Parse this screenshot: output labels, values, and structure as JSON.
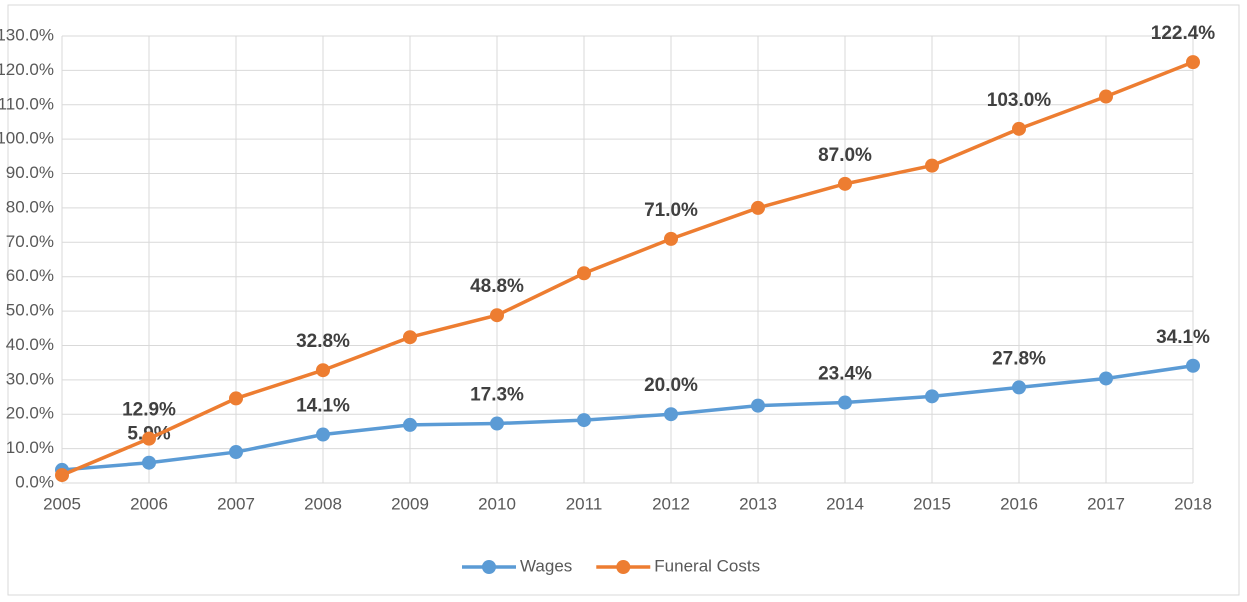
{
  "chart_data": {
    "type": "line",
    "categories": [
      "2005",
      "2006",
      "2007",
      "2008",
      "2009",
      "2010",
      "2011",
      "2012",
      "2013",
      "2014",
      "2015",
      "2016",
      "2017",
      "2018"
    ],
    "series": [
      {
        "name": "Wages",
        "color": "#5b9bd5",
        "values": [
          3.8,
          5.9,
          9.0,
          14.1,
          16.9,
          17.3,
          18.3,
          20.0,
          22.5,
          23.4,
          25.2,
          27.8,
          30.4,
          34.1
        ],
        "value_labels": [
          null,
          "5.9%",
          null,
          "14.1%",
          null,
          "17.3%",
          null,
          "20.0%",
          null,
          "23.4%",
          null,
          "27.8%",
          null,
          "34.1%"
        ]
      },
      {
        "name": "Funeral Costs",
        "color": "#ed7d31",
        "values": [
          2.3,
          12.9,
          24.6,
          32.8,
          42.4,
          48.8,
          61.0,
          71.0,
          80.0,
          87.0,
          92.3,
          103.0,
          112.4,
          122.4
        ],
        "value_labels": [
          null,
          "12.9%",
          null,
          "32.8%",
          null,
          "48.8%",
          null,
          "71.0%",
          null,
          "87.0%",
          null,
          "103.0%",
          null,
          "122.4%"
        ]
      }
    ],
    "ylim": [
      0,
      130
    ],
    "yticks": [
      {
        "value": 0,
        "label": "0.0%"
      },
      {
        "value": 10,
        "label": "10.0%"
      },
      {
        "value": 20,
        "label": "20.0%"
      },
      {
        "value": 30,
        "label": "30.0%"
      },
      {
        "value": 40,
        "label": "40.0%"
      },
      {
        "value": 50,
        "label": "50.0%"
      },
      {
        "value": 60,
        "label": "60.0%"
      },
      {
        "value": 70,
        "label": "70.0%"
      },
      {
        "value": 80,
        "label": "80.0%"
      },
      {
        "value": 90,
        "label": "90.0%"
      },
      {
        "value": 100,
        "label": "100.0%"
      },
      {
        "value": 110,
        "label": "110.0%"
      },
      {
        "value": 120,
        "label": "120.0%"
      },
      {
        "value": 130,
        "label": "130.0%"
      }
    ],
    "grid": true,
    "legend": "bottom"
  }
}
